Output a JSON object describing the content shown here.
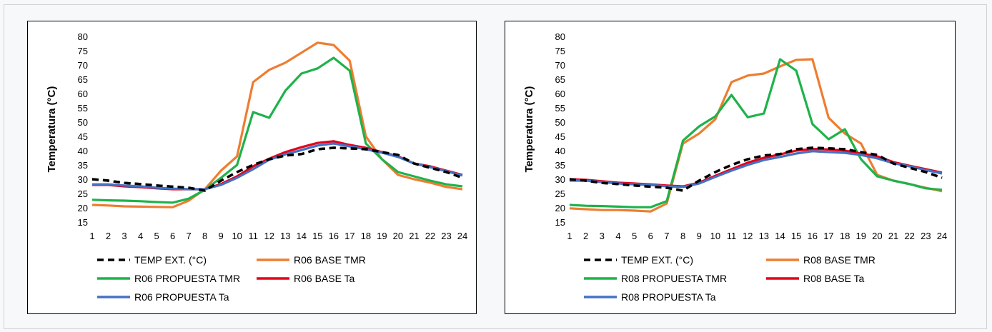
{
  "chart_data": [
    {
      "type": "line",
      "ylabel": "Temperatura (°C)",
      "xlabel": "",
      "ylim": [
        15,
        80
      ],
      "yticks": [
        15,
        20,
        25,
        30,
        35,
        40,
        45,
        50,
        55,
        60,
        65,
        70,
        75,
        80
      ],
      "categories": [
        "1",
        "2",
        "3",
        "4",
        "5",
        "6",
        "7",
        "8",
        "9",
        "10",
        "11",
        "12",
        "13",
        "14",
        "15",
        "16",
        "17",
        "18",
        "19",
        "20",
        "21",
        "22",
        "23",
        "24"
      ],
      "grid": false,
      "legend_position": "bottom",
      "series": [
        {
          "name": "TEMP EXT. (°C)",
          "color": "#000000",
          "dash": true,
          "values": [
            30,
            29.5,
            28.7,
            28.3,
            27.8,
            27.4,
            27.0,
            26.0,
            29.5,
            32.5,
            35.0,
            37.0,
            38.3,
            38.8,
            40.5,
            41.0,
            40.8,
            40.5,
            39.5,
            38.5,
            35.5,
            34.0,
            32.5,
            30.5
          ]
        },
        {
          "name": "R06 BASE TMR",
          "color": "#ed7d31",
          "values": [
            21.0,
            20.8,
            20.5,
            20.4,
            20.3,
            20.2,
            22.5,
            26.5,
            33.0,
            38.0,
            64.0,
            68.3,
            70.8,
            74.3,
            77.8,
            77.0,
            71.5,
            45.0,
            37.0,
            31.5,
            30.0,
            28.8,
            27.3,
            26.5
          ]
        },
        {
          "name": "R06 PROPUESTA TMR",
          "color": "#1fb24a",
          "values": [
            22.8,
            22.6,
            22.5,
            22.3,
            22.0,
            21.8,
            23.2,
            26.3,
            30.5,
            35.0,
            53.5,
            51.5,
            61.0,
            67.0,
            68.8,
            72.5,
            68.0,
            42.5,
            37.0,
            32.5,
            31.0,
            29.5,
            28.2,
            27.5
          ]
        },
        {
          "name": "R06 BASE Ta",
          "color": "#e3001b",
          "values": [
            28.0,
            28.0,
            27.5,
            27.2,
            26.8,
            26.5,
            26.5,
            26.5,
            28.3,
            31.0,
            34.5,
            37.2,
            39.5,
            41.2,
            42.7,
            43.3,
            42.0,
            41.0,
            39.5,
            38.0,
            35.5,
            34.5,
            33.0,
            31.5
          ]
        },
        {
          "name": "R06 PROPUESTA Ta",
          "color": "#4472c4",
          "values": [
            28.2,
            28.2,
            27.8,
            27.5,
            27.0,
            26.7,
            26.5,
            26.5,
            28.0,
            30.5,
            33.5,
            36.8,
            38.7,
            40.2,
            41.8,
            42.5,
            41.5,
            40.5,
            39.3,
            37.8,
            35.5,
            34.2,
            32.8,
            31.3
          ]
        }
      ]
    },
    {
      "type": "line",
      "ylabel": "Temperatura (°C)",
      "xlabel": "",
      "ylim": [
        15,
        80
      ],
      "yticks": [
        15,
        20,
        25,
        30,
        35,
        40,
        45,
        50,
        55,
        60,
        65,
        70,
        75,
        80
      ],
      "categories": [
        "1",
        "2",
        "3",
        "4",
        "5",
        "6",
        "7",
        "8",
        "9",
        "10",
        "11",
        "12",
        "13",
        "14",
        "15",
        "16",
        "17",
        "18",
        "19",
        "20",
        "21",
        "22",
        "23",
        "24"
      ],
      "grid": false,
      "legend_position": "bottom",
      "series": [
        {
          "name": "TEMP EXT. (°C)",
          "color": "#000000",
          "dash": true,
          "values": [
            30,
            29.5,
            28.7,
            28.3,
            27.8,
            27.4,
            27.0,
            26.0,
            29.5,
            32.5,
            35.0,
            37.0,
            38.3,
            38.8,
            40.5,
            41.0,
            40.8,
            40.5,
            39.5,
            38.5,
            35.5,
            34.0,
            32.5,
            30.5
          ]
        },
        {
          "name": "R08 BASE TMR",
          "color": "#ed7d31",
          "values": [
            19.8,
            19.5,
            19.2,
            19.2,
            19.0,
            18.7,
            21.5,
            42.5,
            46.0,
            51.0,
            64.0,
            66.3,
            67.0,
            69.5,
            71.8,
            72.0,
            51.5,
            46.0,
            42.5,
            31.5,
            29.5,
            28.3,
            27.0,
            25.8
          ]
        },
        {
          "name": "R08 PROPUESTA TMR",
          "color": "#1fb24a",
          "values": [
            21.0,
            20.7,
            20.6,
            20.4,
            20.2,
            20.2,
            22.3,
            43.5,
            48.5,
            52.0,
            59.5,
            51.7,
            53.0,
            72.0,
            68.0,
            49.3,
            44.0,
            47.5,
            37.0,
            31.0,
            29.5,
            28.3,
            26.8,
            26.3
          ]
        },
        {
          "name": "R08 BASE Ta",
          "color": "#e3001b",
          "values": [
            30.0,
            29.8,
            29.3,
            28.8,
            28.5,
            28.2,
            27.8,
            27.5,
            28.8,
            31.2,
            33.5,
            35.8,
            37.5,
            38.7,
            40.0,
            40.6,
            40.4,
            40.0,
            39.0,
            38.0,
            36.0,
            34.7,
            33.5,
            32.3
          ]
        },
        {
          "name": "R08 PROPUESTA Ta",
          "color": "#4472c4",
          "values": [
            29.5,
            29.5,
            29.0,
            28.5,
            28.2,
            28.0,
            27.5,
            27.3,
            28.5,
            30.8,
            33.0,
            35.0,
            36.7,
            37.8,
            39.0,
            39.8,
            39.5,
            39.2,
            38.5,
            37.3,
            35.6,
            34.5,
            33.2,
            32.0
          ]
        }
      ]
    }
  ]
}
